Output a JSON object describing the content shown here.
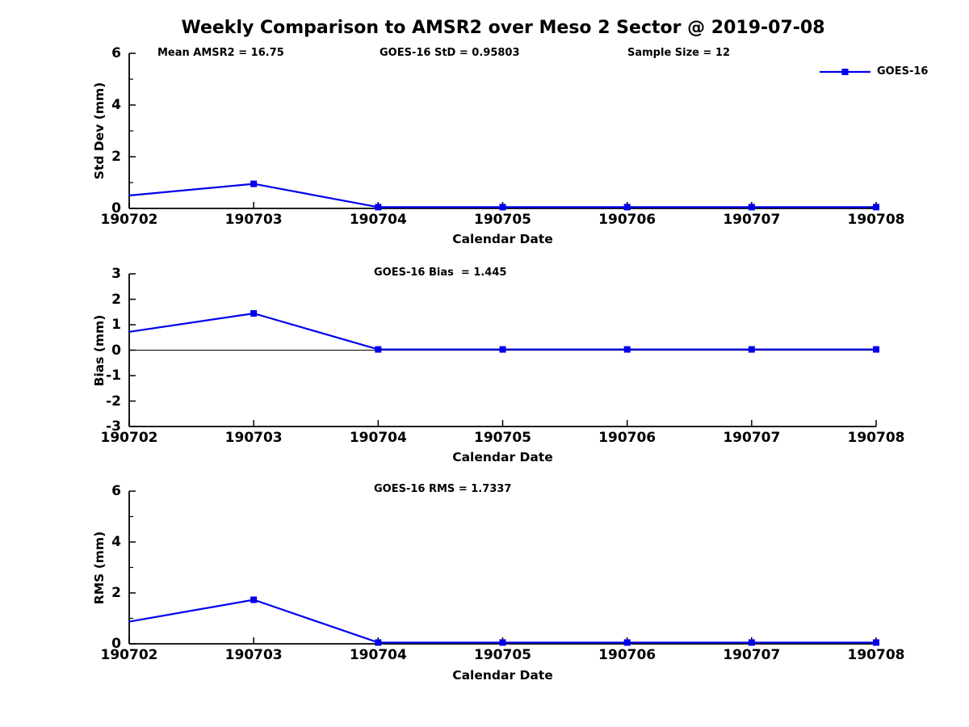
{
  "title": "Weekly Comparison to AMSR2 over Meso 2 Sector @ 2019-07-08",
  "colors": {
    "line": "#0000ee",
    "axis": "#000000",
    "text": "#000000",
    "background": "#ffffff"
  },
  "legend": {
    "label": "GOES-16",
    "marker": "square",
    "position": "top-right"
  },
  "x_axis": {
    "label": "Calendar Date",
    "categories": [
      "190702",
      "190703",
      "190704",
      "190705",
      "190706",
      "190707",
      "190708"
    ]
  },
  "chart_data": [
    {
      "type": "line",
      "name": "std-dev-panel",
      "x": [
        "190702",
        "190703",
        "190704",
        "190705",
        "190706",
        "190707",
        "190708"
      ],
      "xlabel": "Calendar Date",
      "ylabel": "Std Dev (mm)",
      "ylim": [
        0,
        6
      ],
      "yticks": [
        0,
        2,
        4,
        6
      ],
      "yticks_minor": [
        1,
        3,
        5
      ],
      "grid": false,
      "zero_line": false,
      "annotations": [
        "Mean AMSR2 = 16.75",
        "GOES-16 StD = 0.95803",
        "Sample Size = 12"
      ],
      "legend": {
        "label": "GOES-16",
        "position": "top-right"
      },
      "series": [
        {
          "name": "GOES-16",
          "color": "#0000ee",
          "marker": "square",
          "marker_first_point": false,
          "values": [
            0.5,
            0.95,
            0.05,
            0.05,
            0.05,
            0.05,
            0.05
          ]
        }
      ]
    },
    {
      "type": "line",
      "name": "bias-panel",
      "x": [
        "190702",
        "190703",
        "190704",
        "190705",
        "190706",
        "190707",
        "190708"
      ],
      "xlabel": "Calendar Date",
      "ylabel": "Bias (mm)",
      "ylim": [
        -3,
        3
      ],
      "yticks": [
        -3,
        -2,
        -1,
        0,
        1,
        2,
        3
      ],
      "yticks_minor": [],
      "grid": false,
      "zero_line": true,
      "annotations": [
        "GOES-16 Bias  = 1.445"
      ],
      "series": [
        {
          "name": "GOES-16",
          "color": "#0000ee",
          "marker": "square",
          "marker_first_point": false,
          "values": [
            0.72,
            1.445,
            0.03,
            0.03,
            0.03,
            0.03,
            0.03
          ]
        }
      ]
    },
    {
      "type": "line",
      "name": "rms-panel",
      "x": [
        "190702",
        "190703",
        "190704",
        "190705",
        "190706",
        "190707",
        "190708"
      ],
      "xlabel": "Calendar Date",
      "ylabel": "RMS (mm)",
      "ylim": [
        0,
        6
      ],
      "yticks": [
        0,
        2,
        4,
        6
      ],
      "yticks_minor": [
        1,
        3,
        5
      ],
      "grid": false,
      "zero_line": false,
      "annotations": [
        "GOES-16 RMS = 1.7337"
      ],
      "series": [
        {
          "name": "GOES-16",
          "color": "#0000ee",
          "marker": "square",
          "marker_first_point": false,
          "values": [
            0.87,
            1.73,
            0.05,
            0.05,
            0.05,
            0.05,
            0.05
          ]
        }
      ]
    }
  ]
}
